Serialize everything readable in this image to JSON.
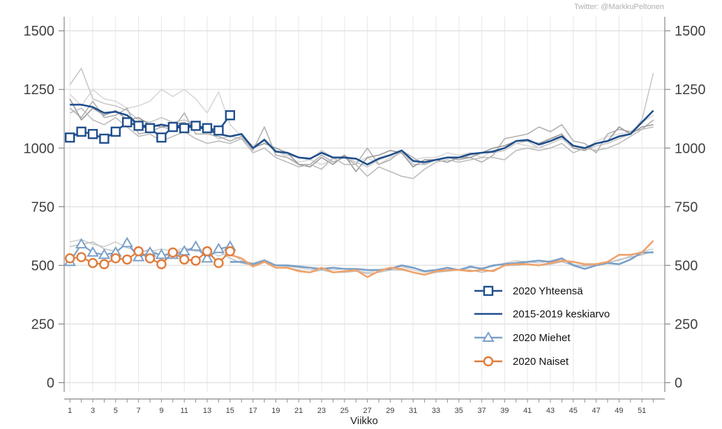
{
  "credit": "Twitter: @MarkkuPeltonen",
  "chart_data": {
    "type": "line",
    "xlabel": "Viikko",
    "ylabel": "",
    "xlim": [
      0.5,
      53
    ],
    "ylim": [
      -40,
      1560
    ],
    "y_ticks": [
      0,
      250,
      500,
      750,
      1000,
      1250,
      1500
    ],
    "x_ticks": [
      1,
      3,
      5,
      7,
      9,
      11,
      13,
      15,
      17,
      19,
      21,
      23,
      25,
      27,
      29,
      31,
      33,
      35,
      37,
      39,
      41,
      43,
      45,
      47,
      49,
      51
    ],
    "grid": true,
    "legend_position": "bottom-right",
    "series": [
      {
        "name": "2020 Yhteensä",
        "color": "#1f4e8c",
        "marker": "square",
        "x": [
          1,
          2,
          3,
          4,
          5,
          6,
          7,
          8,
          9,
          10,
          11,
          12,
          13,
          14,
          15
        ],
        "values": [
          1045,
          1070,
          1060,
          1040,
          1070,
          1110,
          1095,
          1085,
          1045,
          1090,
          1085,
          1095,
          1085,
          1075,
          1140
        ]
      },
      {
        "name": "2015-2019 keskiarvo",
        "color": "#1f4e8c",
        "marker": "none",
        "x": [
          1,
          2,
          3,
          4,
          5,
          6,
          7,
          8,
          9,
          10,
          11,
          12,
          13,
          14,
          15,
          16,
          17,
          18,
          19,
          20,
          21,
          22,
          23,
          24,
          25,
          26,
          27,
          28,
          29,
          30,
          31,
          32,
          33,
          34,
          35,
          36,
          37,
          38,
          39,
          40,
          41,
          42,
          43,
          44,
          45,
          46,
          47,
          48,
          49,
          50,
          51,
          52
        ],
        "values": [
          1185,
          1185,
          1175,
          1150,
          1155,
          1140,
          1100,
          1090,
          1100,
          1090,
          1100,
          1090,
          1080,
          1060,
          1050,
          1060,
          1000,
          1035,
          985,
          980,
          960,
          955,
          980,
          960,
          960,
          955,
          930,
          955,
          970,
          990,
          945,
          940,
          950,
          960,
          960,
          975,
          980,
          985,
          1000,
          1030,
          1035,
          1015,
          1030,
          1050,
          1010,
          1000,
          1020,
          1030,
          1050,
          1060,
          1110,
          1160
        ]
      },
      {
        "name": "2020 Miehet",
        "color": "#7ba0c9",
        "marker": "triangle",
        "x": [
          1,
          2,
          3,
          4,
          5,
          6,
          7,
          8,
          9,
          10,
          11,
          12,
          13,
          14,
          15
        ],
        "values": [
          515,
          590,
          555,
          545,
          555,
          595,
          535,
          555,
          545,
          545,
          560,
          580,
          530,
          570,
          580
        ]
      },
      {
        "name": "2020 Naiset",
        "color": "#e07b39",
        "marker": "circle",
        "x": [
          1,
          2,
          3,
          4,
          5,
          6,
          7,
          8,
          9,
          10,
          11,
          12,
          13,
          14,
          15
        ],
        "values": [
          530,
          535,
          510,
          505,
          530,
          525,
          560,
          530,
          505,
          555,
          525,
          520,
          560,
          510,
          560
        ]
      },
      {
        "name": "",
        "color": "#7ba0c9",
        "marker": "none",
        "x": [
          15,
          16,
          17,
          18,
          19,
          20,
          21,
          22,
          23,
          24,
          25,
          26,
          27,
          28,
          29,
          30,
          31,
          32,
          33,
          34,
          35,
          36,
          37,
          38,
          39,
          40,
          41,
          42,
          43,
          44,
          45,
          46,
          47,
          48,
          49,
          50,
          51,
          52
        ],
        "values": [
          515,
          515,
          505,
          520,
          500,
          500,
          495,
          490,
          485,
          490,
          485,
          485,
          480,
          480,
          485,
          500,
          490,
          475,
          480,
          490,
          480,
          495,
          485,
          500,
          505,
          510,
          515,
          520,
          515,
          530,
          500,
          485,
          500,
          510,
          505,
          525,
          555,
          555
        ]
      },
      {
        "name": "",
        "color": "#f0a26a",
        "marker": "none",
        "x": [
          15,
          16,
          17,
          18,
          19,
          20,
          21,
          22,
          23,
          24,
          25,
          26,
          27,
          28,
          29,
          30,
          31,
          32,
          33,
          34,
          35,
          36,
          37,
          38,
          39,
          40,
          41,
          42,
          43,
          44,
          45,
          46,
          47,
          48,
          49,
          50,
          51,
          52
        ],
        "values": [
          545,
          530,
          495,
          515,
          490,
          490,
          475,
          470,
          490,
          470,
          475,
          480,
          450,
          475,
          490,
          485,
          470,
          460,
          475,
          480,
          480,
          475,
          480,
          475,
          500,
          505,
          505,
          500,
          510,
          520,
          515,
          505,
          505,
          515,
          545,
          545,
          555,
          605
        ]
      }
    ],
    "background_series": [
      {
        "color": "#c8c8c8",
        "x": [
          1,
          2,
          3,
          4,
          5,
          6,
          7,
          8,
          9,
          10,
          11,
          12,
          13,
          14,
          15,
          16,
          17,
          18,
          19,
          20,
          21,
          22,
          23,
          24,
          25,
          26,
          27,
          28,
          29,
          30,
          31,
          32,
          33,
          34,
          35,
          36,
          37,
          38,
          39,
          40,
          41,
          42,
          43,
          44,
          45,
          46,
          47,
          48,
          49,
          50,
          51,
          52
        ],
        "values": [
          1270,
          1340,
          1210,
          1190,
          1180,
          1160,
          1120,
          1110,
          1130,
          1110,
          1120,
          1100,
          1070,
          1040,
          1050,
          1040,
          1000,
          1040,
          990,
          970,
          960,
          950,
          990,
          960,
          960,
          940,
          920,
          950,
          970,
          990,
          930,
          930,
          950,
          960,
          950,
          970,
          980,
          980,
          990,
          1020,
          1030,
          1000,
          1020,
          1040,
          1000,
          990,
          1010,
          1020,
          1040,
          1060,
          1120,
          1320
        ]
      },
      {
        "color": "#d8d8d8",
        "x": [
          1,
          2,
          3,
          4,
          5,
          6,
          7,
          8,
          9,
          10,
          11,
          12,
          13,
          14,
          15,
          16,
          17,
          18,
          19,
          20,
          21,
          22,
          23,
          24,
          25,
          26,
          27,
          28,
          29,
          30,
          31,
          32,
          33,
          34,
          35,
          36,
          37,
          38,
          39,
          40,
          41,
          42,
          43,
          44,
          45,
          46,
          47,
          48,
          49,
          50,
          51,
          52
        ],
        "values": [
          1230,
          1180,
          1250,
          1210,
          1200,
          1170,
          1180,
          1200,
          1250,
          1220,
          1250,
          1210,
          1150,
          1240,
          1100,
          1050,
          1010,
          1030,
          990,
          960,
          940,
          950,
          930,
          950,
          970,
          940,
          960,
          930,
          960,
          980,
          950,
          960,
          960,
          980,
          970,
          980,
          960,
          990,
          1000,
          1020,
          1010,
          1000,
          1040,
          1050,
          1010,
          990,
          1030,
          1050,
          1060,
          1070,
          1110,
          1140
        ]
      },
      {
        "color": "#b0b0b0",
        "x": [
          1,
          2,
          3,
          4,
          5,
          6,
          7,
          8,
          9,
          10,
          11,
          12,
          13,
          14,
          15,
          16,
          17,
          18,
          19,
          20,
          21,
          22,
          23,
          24,
          25,
          26,
          27,
          28,
          29,
          30,
          31,
          32,
          33,
          34,
          35,
          36,
          37,
          38,
          39,
          40,
          41,
          42,
          43,
          44,
          45,
          46,
          47,
          48,
          49,
          50,
          51,
          52
        ],
        "values": [
          1170,
          1130,
          1200,
          1130,
          1140,
          1170,
          1060,
          1070,
          1090,
          1080,
          1150,
          1060,
          1060,
          1050,
          1030,
          1050,
          990,
          1090,
          970,
          960,
          930,
          930,
          970,
          940,
          960,
          930,
          1000,
          930,
          950,
          990,
          960,
          930,
          950,
          960,
          950,
          960,
          940,
          970,
          1040,
          1050,
          1060,
          1090,
          1070,
          1100,
          1030,
          1020,
          980,
          1060,
          1080,
          1070,
          1080,
          1120
        ]
      },
      {
        "color": "#9a9a9a",
        "x": [
          1,
          2,
          3,
          4,
          5,
          6,
          7,
          8,
          9,
          10,
          11,
          12,
          13,
          14,
          15,
          16,
          17,
          18,
          19,
          20,
          21,
          22,
          23,
          24,
          25,
          26,
          27,
          28,
          29,
          30,
          31,
          32,
          33,
          34,
          35,
          36,
          37,
          38,
          39,
          40,
          41,
          42,
          43,
          44,
          45,
          46,
          47,
          48,
          49,
          50,
          51,
          52
        ],
        "values": [
          1210,
          1120,
          1170,
          1140,
          1160,
          1120,
          1130,
          1100,
          1090,
          1100,
          1110,
          1080,
          1090,
          1060,
          1050,
          1060,
          1000,
          1020,
          1000,
          980,
          930,
          920,
          960,
          930,
          970,
          900,
          960,
          970,
          990,
          980,
          920,
          950,
          950,
          940,
          960,
          960,
          980,
          1000,
          1010,
          1030,
          1030,
          1020,
          1040,
          1060,
          1000,
          990,
          1020,
          1030,
          1090,
          1060,
          1090,
          1100
        ]
      },
      {
        "color": "#bdbdbd",
        "x": [
          1,
          2,
          3,
          4,
          5,
          6,
          7,
          8,
          9,
          10,
          11,
          12,
          13,
          14,
          15,
          16,
          17,
          18,
          19,
          20,
          21,
          22,
          23,
          24,
          25,
          26,
          27,
          28,
          29,
          30,
          31,
          32,
          33,
          34,
          35,
          36,
          37,
          38,
          39,
          40,
          41,
          42,
          43,
          44,
          45,
          46,
          47,
          48,
          49,
          50,
          51,
          52
        ],
        "values": [
          1150,
          1170,
          1120,
          1100,
          1130,
          1090,
          1050,
          1060,
          1030,
          1050,
          1070,
          1040,
          1020,
          1030,
          1020,
          1040,
          980,
          1000,
          960,
          940,
          920,
          930,
          910,
          960,
          930,
          930,
          880,
          920,
          900,
          880,
          870,
          910,
          940,
          950,
          940,
          950,
          960,
          960,
          950,
          990,
          1000,
          990,
          1000,
          1020,
          980,
          1000,
          990,
          1000,
          1020,
          1050,
          1080,
          1090
        ]
      },
      {
        "color": "#d0d0d0",
        "x": [
          1,
          2,
          3,
          4,
          5,
          6,
          7,
          8,
          9,
          10,
          11,
          12,
          13,
          14,
          15,
          16,
          17,
          18,
          19,
          20,
          21,
          22,
          23,
          24,
          25,
          26,
          27,
          28,
          29,
          30,
          31,
          32,
          33,
          34,
          35,
          36,
          37,
          38,
          39,
          40,
          41,
          42,
          43,
          44,
          45,
          46,
          47,
          48,
          49,
          50,
          51,
          52
        ],
        "values": [
          600,
          610,
          590,
          580,
          600,
          575,
          560,
          560,
          570,
          560,
          575,
          560,
          565,
          540,
          555,
          520,
          510,
          525,
          500,
          495,
          490,
          480,
          490,
          480,
          485,
          480,
          470,
          480,
          490,
          495,
          480,
          470,
          480,
          490,
          480,
          490,
          490,
          495,
          510,
          520,
          515,
          510,
          520,
          530,
          505,
          495,
          505,
          515,
          520,
          540,
          560,
          570
        ]
      },
      {
        "color": "#c0c0c0",
        "x": [
          1,
          2,
          3,
          4,
          5,
          6,
          7,
          8,
          9,
          10,
          11,
          12,
          13,
          14,
          15,
          16,
          17,
          18,
          19,
          20,
          21,
          22,
          23,
          24,
          25,
          26,
          27,
          28,
          29,
          30,
          31,
          32,
          33,
          34,
          35,
          36,
          37,
          38,
          39,
          40,
          41,
          42,
          43,
          44,
          45,
          46,
          47,
          48,
          49,
          50,
          51,
          52
        ],
        "values": [
          580,
          590,
          600,
          570,
          560,
          590,
          550,
          570,
          540,
          560,
          560,
          570,
          540,
          560,
          530,
          510,
          500,
          515,
          490,
          490,
          480,
          470,
          480,
          470,
          470,
          475,
          465,
          470,
          480,
          480,
          470,
          460,
          470,
          475,
          480,
          480,
          470,
          480,
          500,
          500,
          505,
          500,
          505,
          515,
          500,
          500,
          500,
          510,
          525,
          535,
          545,
          560
        ]
      }
    ]
  }
}
